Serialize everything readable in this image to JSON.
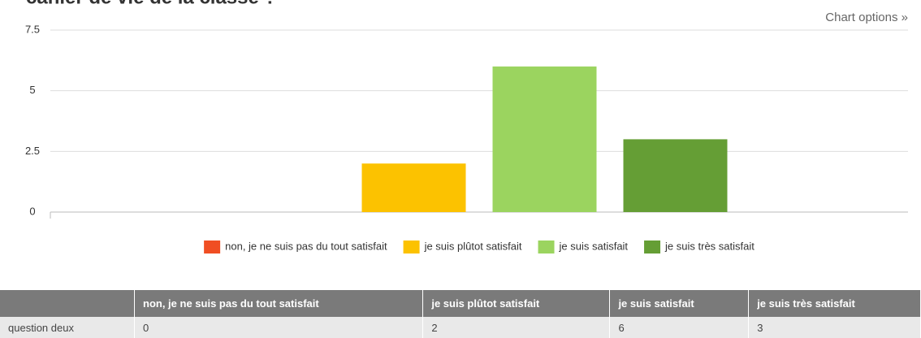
{
  "chart_data": {
    "type": "bar",
    "title": "cahier de vie de la classe ?",
    "options_link": "Chart options »",
    "categories": [
      "question deux"
    ],
    "series": [
      {
        "name": "non, je ne suis pas du tout satisfait",
        "color": "#f04e23",
        "values": [
          0
        ]
      },
      {
        "name": "je suis plûtot satisfait",
        "color": "#fcc200",
        "values": [
          2
        ]
      },
      {
        "name": "je suis satisfait",
        "color": "#9bd45f",
        "values": [
          6
        ]
      },
      {
        "name": "je suis très satisfait",
        "color": "#659e35",
        "values": [
          3
        ]
      }
    ],
    "ylim": [
      0,
      7.5
    ],
    "yticks": [
      0,
      2.5,
      5,
      7.5
    ],
    "grid": true,
    "legend": "bottom"
  }
}
